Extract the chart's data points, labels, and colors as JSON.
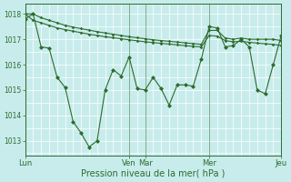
{
  "xlabel": "Pression niveau de la mer( hPa )",
  "bg_color": "#c8ecec",
  "grid_color": "#ffffff",
  "line_color": "#2d6b2d",
  "ylim": [
    1012.4,
    1018.4
  ],
  "yticks": [
    1013,
    1014,
    1015,
    1016,
    1017,
    1018
  ],
  "day_labels": [
    "Lun",
    "Ven",
    "Mar",
    "Mer",
    "Jeu"
  ],
  "day_x": [
    0,
    13,
    15,
    23,
    32
  ],
  "line1_x": [
    0,
    1,
    2,
    3,
    4,
    5,
    6,
    7,
    8,
    9,
    10,
    11,
    12,
    13,
    14,
    15,
    16,
    17,
    18,
    19,
    20,
    21,
    22,
    23,
    24,
    25,
    26,
    27,
    28,
    29,
    30,
    31,
    32
  ],
  "line1_y": [
    1018.0,
    1018.0,
    1017.85,
    1017.75,
    1017.65,
    1017.55,
    1017.48,
    1017.42,
    1017.36,
    1017.3,
    1017.25,
    1017.2,
    1017.15,
    1017.1,
    1017.06,
    1017.02,
    1016.98,
    1016.95,
    1016.92,
    1016.89,
    1016.86,
    1016.83,
    1016.8,
    1017.35,
    1017.35,
    1017.05,
    1017.0,
    1017.05,
    1017.0,
    1017.0,
    1017.0,
    1017.0,
    1016.95
  ],
  "line2_x": [
    0,
    1,
    2,
    3,
    4,
    5,
    6,
    7,
    8,
    9,
    10,
    11,
    12,
    13,
    14,
    15,
    16,
    17,
    18,
    19,
    20,
    21,
    22,
    23,
    24,
    25,
    26,
    27,
    28,
    29,
    30,
    31,
    32
  ],
  "line2_y": [
    1018.0,
    1017.75,
    1017.65,
    1017.55,
    1017.45,
    1017.38,
    1017.32,
    1017.26,
    1017.2,
    1017.15,
    1017.1,
    1017.06,
    1017.02,
    1016.98,
    1016.94,
    1016.9,
    1016.87,
    1016.84,
    1016.81,
    1016.78,
    1016.75,
    1016.72,
    1016.7,
    1017.15,
    1017.12,
    1016.95,
    1016.9,
    1016.92,
    1016.88,
    1016.85,
    1016.82,
    1016.8,
    1016.75
  ],
  "main_x": [
    0,
    1,
    2,
    3,
    4,
    5,
    6,
    7,
    8,
    9,
    10,
    11,
    12,
    13,
    14,
    15,
    16,
    17,
    18,
    19,
    20,
    21,
    22,
    23,
    24,
    25,
    26,
    27,
    28,
    29,
    30,
    31,
    32
  ],
  "main_y": [
    1017.8,
    1018.0,
    1016.7,
    1016.65,
    1015.5,
    1015.1,
    1013.75,
    1013.3,
    1012.75,
    1013.0,
    1015.0,
    1015.8,
    1015.55,
    1016.3,
    1015.05,
    1015.0,
    1015.5,
    1015.05,
    1014.4,
    1015.2,
    1015.2,
    1015.15,
    1016.2,
    1017.5,
    1017.45,
    1016.7,
    1016.75,
    1017.0,
    1016.7,
    1015.0,
    1014.85,
    1016.0,
    1017.15
  ]
}
